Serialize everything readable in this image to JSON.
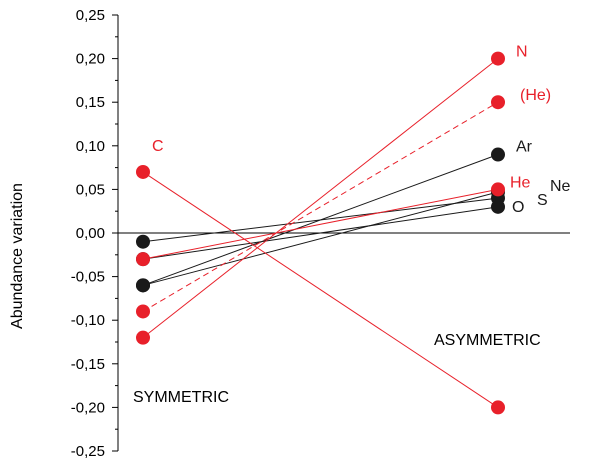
{
  "chart_data": {
    "type": "line",
    "ylabel": "Abundance variation",
    "ylim": [
      -0.25,
      0.25
    ],
    "yticks": [
      0.25,
      0.2,
      0.15,
      0.1,
      0.05,
      0.0,
      -0.05,
      -0.1,
      -0.15,
      -0.2,
      -0.25
    ],
    "ytick_labels": [
      "0,25",
      "0,20",
      "0,15",
      "0,10",
      "0,05",
      "0,00",
      "-0,05",
      "-0,10",
      "-0,15",
      "-0,20",
      "-0,25"
    ],
    "categories": [
      "SYMMETRIC",
      "ASYMMETRIC"
    ],
    "category_labels": [
      "SYMMETRIC",
      "ASYMMETRIC"
    ],
    "zero_line": true,
    "series": [
      {
        "name": "N",
        "values": [
          -0.12,
          0.2
        ],
        "color": "#e8202a",
        "dashed": false
      },
      {
        "name": "(He)",
        "values": [
          -0.09,
          0.15
        ],
        "color": "#e8202a",
        "dashed": true
      },
      {
        "name": "Ar",
        "values": [
          -0.06,
          0.09
        ],
        "color": "#1a1a1a",
        "dashed": false
      },
      {
        "name": "He",
        "values": [
          -0.03,
          0.05
        ],
        "color": "#e8202a",
        "dashed": false
      },
      {
        "name": "Ne",
        "values": [
          -0.06,
          0.047
        ],
        "color": "#1a1a1a",
        "dashed": false
      },
      {
        "name": "S",
        "values": [
          -0.01,
          0.04
        ],
        "color": "#1a1a1a",
        "dashed": false
      },
      {
        "name": "O",
        "values": [
          -0.03,
          0.03
        ],
        "color": "#1a1a1a",
        "dashed": false
      },
      {
        "name": "C",
        "values": [
          0.07,
          -0.2
        ],
        "color": "#e8202a",
        "dashed": false
      }
    ]
  }
}
